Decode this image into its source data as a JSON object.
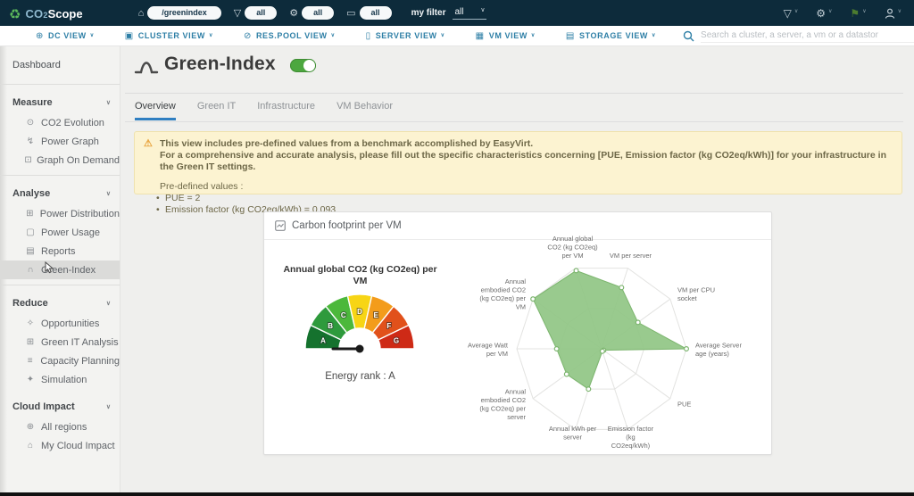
{
  "topbar": {
    "logo_co": "CO",
    "logo_sub": "2",
    "logo_scope": "Scope",
    "home_url": "/greenindex",
    "filters": [
      {
        "icon": "funnel-icon",
        "glyph": "▽",
        "value": "all"
      },
      {
        "icon": "gear-icon",
        "glyph": "⚙",
        "value": "all"
      },
      {
        "icon": "tag-icon",
        "glyph": "▭",
        "value": "all"
      }
    ],
    "my_filter_label": "my filter",
    "my_filter_value": "all",
    "right_icons": [
      {
        "name": "filter-icon",
        "glyph": "▽",
        "color": "#c3cfd6"
      },
      {
        "name": "settings-icon",
        "glyph": "⚙",
        "color": "#c3cfd6"
      },
      {
        "name": "flag-icon",
        "glyph": "⚑",
        "color": "#4c7c2f"
      },
      {
        "name": "user-icon",
        "glyph": "user",
        "color": "#c3cfd6"
      }
    ]
  },
  "viewbar": {
    "items": [
      {
        "name": "dc-view",
        "glyph": "⊕",
        "label": "DC VIEW"
      },
      {
        "name": "cluster-view",
        "glyph": "▣",
        "label": "CLUSTER VIEW"
      },
      {
        "name": "respool-view",
        "glyph": "⊘",
        "label": "RES.POOL VIEW"
      },
      {
        "name": "server-view",
        "glyph": "▯",
        "label": "SERVER VIEW"
      },
      {
        "name": "vm-view",
        "glyph": "▦",
        "label": "VM VIEW"
      },
      {
        "name": "storage-view",
        "glyph": "▤",
        "label": "STORAGE VIEW"
      }
    ],
    "search_placeholder": "Search a cluster, a server, a vm or a datastor"
  },
  "sidebar": {
    "dashboard": "Dashboard",
    "sections": [
      {
        "label": "Measure",
        "divider_after": true,
        "items": [
          {
            "name": "co2-evolution",
            "icon": "co2-evolution-icon",
            "glyph": "⊙",
            "label": "CO2 Evolution"
          },
          {
            "name": "power-graph",
            "icon": "power-graph-icon",
            "glyph": "↯",
            "label": "Power Graph"
          },
          {
            "name": "graph-on-demand",
            "icon": "graph-on-demand-icon",
            "glyph": "⊡",
            "label": "Graph On Demand"
          }
        ]
      },
      {
        "label": "Analyse",
        "divider_after": true,
        "items": [
          {
            "name": "power-distribution",
            "icon": "power-distribution-icon",
            "glyph": "⊞",
            "label": "Power Distribution"
          },
          {
            "name": "power-usage",
            "icon": "power-usage-icon",
            "glyph": "▢",
            "label": "Power Usage"
          },
          {
            "name": "reports",
            "icon": "reports-icon",
            "glyph": "▤",
            "label": "Reports"
          },
          {
            "name": "green-index",
            "icon": "green-index-icon",
            "glyph": "∩",
            "label": "Green-Index",
            "selected": true
          }
        ]
      },
      {
        "label": "Reduce",
        "divider_after": false,
        "items": [
          {
            "name": "opportunities",
            "icon": "opportunities-icon",
            "glyph": "✧",
            "label": "Opportunities"
          },
          {
            "name": "green-it-analysis",
            "icon": "green-it-analysis-icon",
            "glyph": "⊞",
            "label": "Green IT Analysis"
          },
          {
            "name": "capacity-planning",
            "icon": "capacity-planning-icon",
            "glyph": "≡",
            "label": "Capacity Planning"
          },
          {
            "name": "simulation",
            "icon": "simulation-icon",
            "glyph": "✦",
            "label": "Simulation"
          }
        ]
      },
      {
        "label": "Cloud Impact",
        "divider_after": false,
        "items": [
          {
            "name": "all-regions",
            "icon": "all-regions-icon",
            "glyph": "⊕",
            "label": "All regions"
          },
          {
            "name": "my-cloud-impact",
            "icon": "my-cloud-impact-icon",
            "glyph": "⌂",
            "label": "My Cloud Impact"
          }
        ]
      }
    ]
  },
  "page": {
    "title": "Green-Index",
    "toggle_on": true,
    "tabs": [
      "Overview",
      "Green IT",
      "Infrastructure",
      "VM Behavior"
    ],
    "active_tab": "Overview",
    "notice": {
      "line1": "This view includes pre-defined values from a benchmark accomplished by EasyVirt.",
      "line2": "For a comprehensive and accurate analysis, please fill out the specific characteristics concerning [PUE, Emission factor (kg CO2eq/kWh)] for your infrastructure in the Green IT settings.",
      "intro": "Pre-defined values :",
      "bullets": [
        "PUE = 2",
        "Emission factor (kg CO2eq/kWh) = 0.093"
      ]
    }
  },
  "card": {
    "title": "Carbon footprint per VM"
  },
  "chart_data": [
    {
      "type": "gauge",
      "title": "Annual global CO2 (kg CO2eq) per VM",
      "caption": "Energy rank : A",
      "segments": [
        {
          "label": "A",
          "color": "#15722e"
        },
        {
          "label": "B",
          "color": "#2e9a3c"
        },
        {
          "label": "C",
          "color": "#4cb83b"
        },
        {
          "label": "D",
          "color": "#f7d515"
        },
        {
          "label": "E",
          "color": "#f39c1b"
        },
        {
          "label": "F",
          "color": "#e1511b"
        },
        {
          "label": "G",
          "color": "#ce2a16"
        }
      ],
      "needle_value": "A",
      "needle_angle_deg": 180
    },
    {
      "type": "radar",
      "axes": [
        "Annual global CO2 (kg CO2eq) per VM",
        "VM per server",
        "VM per CPU socket",
        "Average Server age (years)",
        "PUE",
        "Emission factor (kg CO2eq/kWh)",
        "Annual kWh per server",
        "Annual embodied CO2 (kg CO2eq) per server",
        "Average Watt per VM",
        "Annual embodied CO2 (kg CO2eq) per VM"
      ],
      "label_lines": [
        [
          "Annual global",
          "CO2 (kg CO2eq)",
          "per VM"
        ],
        [
          "VM per server"
        ],
        [
          "VM per CPU",
          "socket"
        ],
        [
          "Average Server",
          "age (years)"
        ],
        [
          "PUE"
        ],
        [
          "Emission factor",
          "(kg",
          "CO2eq/kWh)"
        ],
        [
          "Annual kWh per",
          "server"
        ],
        [
          "Annual",
          "embodied CO2",
          "(kg CO2eq) per",
          "server"
        ],
        [
          "Average Watt",
          "per VM"
        ],
        [
          "Annual",
          "embodied CO2",
          "(kg CO2eq) per",
          "VM"
        ]
      ],
      "values": [
        0.97,
        0.76,
        0.53,
        1.0,
        0.03,
        0.03,
        0.5,
        0.51,
        0.53,
        1.0
      ],
      "max": 1,
      "start_angle_deg": 108,
      "fill_color": "#90c584",
      "stroke_color": "#7cb56e",
      "grid_color": "#e3e3e1"
    }
  ]
}
